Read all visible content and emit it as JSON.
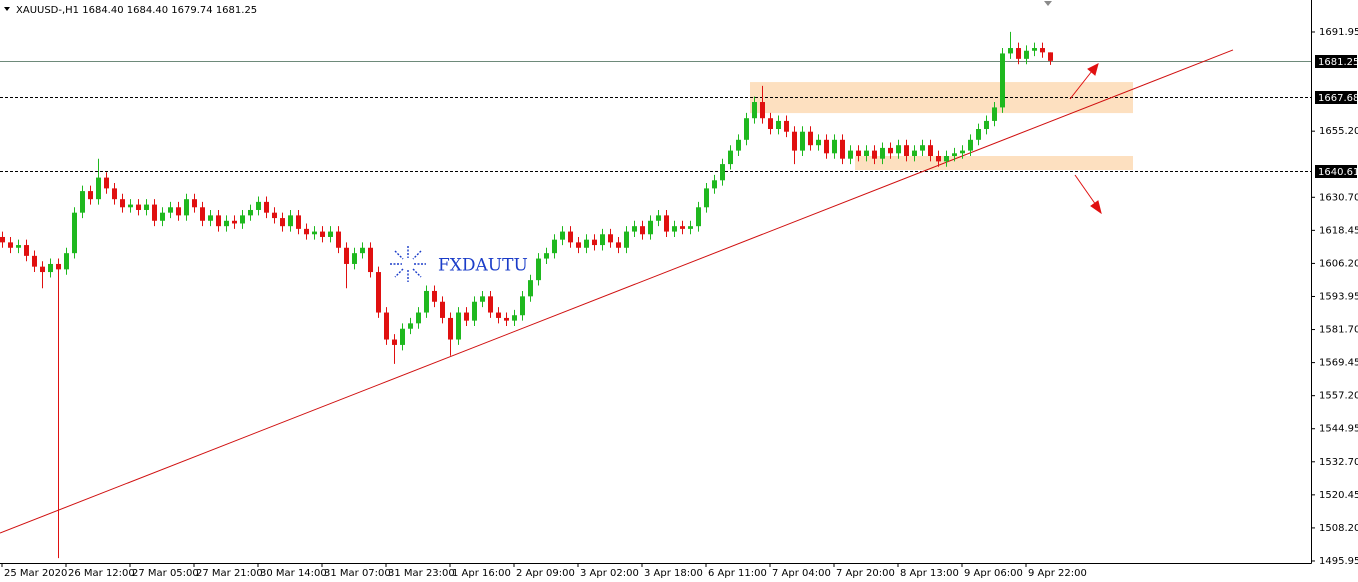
{
  "chart_data": {
    "type": "candlestick",
    "title": "XAUUSD-,H1  1684.40 1684.40 1679.74 1681.25",
    "watermark": "FXDAUTU",
    "up_color": "#1fb81f",
    "down_color": "#e01010",
    "x": [
      0,
      2,
      4,
      6,
      8,
      10,
      12,
      14,
      16,
      18,
      20,
      22,
      24,
      26,
      28,
      30,
      32,
      34,
      36,
      38,
      40,
      42,
      44,
      46,
      48,
      50,
      52,
      54,
      56,
      58,
      60,
      62,
      64,
      66,
      68,
      70,
      72,
      74,
      76,
      78,
      80,
      82,
      84,
      86,
      88,
      90,
      92,
      94,
      96,
      98,
      100,
      102,
      104,
      106,
      108,
      110,
      112,
      114,
      116,
      118,
      120,
      122,
      124,
      126,
      128,
      130,
      132,
      134,
      136,
      138,
      140,
      142,
      144,
      146,
      148,
      150,
      152,
      154,
      156,
      158,
      160,
      162,
      164,
      166,
      168,
      170,
      172,
      174,
      176,
      178,
      180,
      182,
      184,
      186,
      188,
      190,
      192,
      194,
      196,
      198,
      200,
      202,
      204,
      206,
      208,
      210,
      212,
      214,
      216,
      218,
      220,
      222,
      224,
      226,
      228,
      230,
      232,
      234,
      236,
      238,
      240,
      242,
      244,
      246,
      248,
      250,
      252,
      254,
      256,
      258,
      260,
      262
    ],
    "open": [
      1616,
      1614,
      1612,
      1613,
      1609,
      1605,
      1603,
      1606,
      1604,
      1610,
      1625,
      1633,
      1630,
      1638,
      1634,
      1630,
      1627,
      1628,
      1626,
      1628,
      1622,
      1625,
      1627,
      1624,
      1630,
      1627,
      1622,
      1624,
      1620,
      1622,
      1621,
      1624,
      1626,
      1629,
      1625,
      1623,
      1620,
      1624,
      1619,
      1617,
      1618,
      1616,
      1618,
      1612,
      1606,
      1610,
      1612,
      1603,
      1588,
      1578,
      1576,
      1582,
      1584,
      1588,
      1596,
      1592,
      1586,
      1578,
      1588,
      1585,
      1592,
      1594,
      1588,
      1586,
      1585,
      1587,
      1594,
      1600,
      1608,
      1610,
      1615,
      1618,
      1614,
      1612,
      1615,
      1613,
      1617,
      1614,
      1612,
      1618,
      1620,
      1617,
      1622,
      1624,
      1618,
      1620,
      1619,
      1620,
      1627,
      1634,
      1637,
      1643,
      1648,
      1652,
      1660,
      1666,
      1660,
      1656,
      1659,
      1655,
      1648,
      1655,
      1650,
      1652,
      1647,
      1652,
      1645,
      1648,
      1646,
      1648,
      1645,
      1649,
      1647,
      1650,
      1646,
      1648,
      1650,
      1646,
      1644,
      1646,
      1647,
      1648,
      1652,
      1656,
      1659,
      1664,
      1684,
      1686,
      1682,
      1685,
      1686,
      1684.4
    ],
    "high": [
      1618,
      1616,
      1615,
      1615,
      1611,
      1607,
      1608,
      1608,
      1612,
      1627,
      1635,
      1635,
      1645,
      1640,
      1636,
      1632,
      1630,
      1630,
      1630,
      1630,
      1627,
      1629,
      1629,
      1632,
      1632,
      1629,
      1626,
      1626,
      1624,
      1624,
      1626,
      1628,
      1631,
      1631,
      1627,
      1625,
      1626,
      1626,
      1621,
      1620,
      1620,
      1620,
      1620,
      1614,
      1612,
      1614,
      1614,
      1605,
      1590,
      1580,
      1584,
      1586,
      1590,
      1598,
      1598,
      1594,
      1588,
      1590,
      1590,
      1594,
      1596,
      1596,
      1590,
      1588,
      1589,
      1596,
      1602,
      1610,
      1612,
      1617,
      1620,
      1620,
      1616,
      1617,
      1617,
      1619,
      1619,
      1616,
      1620,
      1622,
      1622,
      1624,
      1626,
      1626,
      1622,
      1622,
      1622,
      1629,
      1636,
      1639,
      1645,
      1650,
      1654,
      1662,
      1668,
      1672,
      1662,
      1661,
      1661,
      1657,
      1657,
      1657,
      1654,
      1654,
      1654,
      1654,
      1650,
      1650,
      1650,
      1650,
      1651,
      1651,
      1652,
      1652,
      1650,
      1652,
      1652,
      1648,
      1648,
      1649,
      1650,
      1654,
      1658,
      1661,
      1666,
      1686,
      1692,
      1688,
      1687,
      1688,
      1688,
      1684.4
    ],
    "low": [
      1612,
      1610,
      1610,
      1607,
      1603,
      1597,
      1601,
      1497,
      1602,
      1608,
      1623,
      1628,
      1628,
      1632,
      1628,
      1625,
      1625,
      1624,
      1624,
      1620,
      1620,
      1623,
      1622,
      1622,
      1625,
      1620,
      1620,
      1618,
      1618,
      1619,
      1619,
      1622,
      1624,
      1623,
      1621,
      1618,
      1618,
      1617,
      1615,
      1615,
      1614,
      1614,
      1610,
      1597,
      1604,
      1608,
      1601,
      1586,
      1576,
      1569,
      1574,
      1580,
      1582,
      1586,
      1590,
      1584,
      1572,
      1576,
      1583,
      1583,
      1590,
      1586,
      1584,
      1583,
      1583,
      1585,
      1592,
      1598,
      1606,
      1608,
      1613,
      1612,
      1610,
      1610,
      1611,
      1611,
      1612,
      1610,
      1610,
      1616,
      1615,
      1615,
      1620,
      1616,
      1616,
      1617,
      1617,
      1618,
      1625,
      1632,
      1635,
      1641,
      1646,
      1650,
      1658,
      1658,
      1654,
      1654,
      1653,
      1643,
      1646,
      1648,
      1648,
      1645,
      1645,
      1643,
      1643,
      1644,
      1644,
      1643,
      1643,
      1645,
      1645,
      1644,
      1644,
      1646,
      1644,
      1642,
      1642,
      1644,
      1645,
      1646,
      1650,
      1654,
      1657,
      1662,
      1682,
      1680,
      1680,
      1683,
      1682.4,
      1679.74
    ],
    "close": [
      1614,
      1612,
      1613,
      1609,
      1605,
      1603,
      1606,
      1604,
      1610,
      1625,
      1633,
      1630,
      1638,
      1634,
      1630,
      1627,
      1628,
      1626,
      1628,
      1622,
      1625,
      1627,
      1624,
      1630,
      1627,
      1622,
      1624,
      1620,
      1622,
      1621,
      1624,
      1626,
      1629,
      1625,
      1623,
      1620,
      1624,
      1619,
      1617,
      1618,
      1616,
      1618,
      1612,
      1606,
      1610,
      1612,
      1603,
      1588,
      1578,
      1576,
      1582,
      1584,
      1588,
      1596,
      1592,
      1586,
      1578,
      1588,
      1585,
      1592,
      1594,
      1588,
      1586,
      1585,
      1587,
      1594,
      1600,
      1608,
      1610,
      1615,
      1618,
      1614,
      1612,
      1615,
      1613,
      1617,
      1614,
      1612,
      1618,
      1620,
      1617,
      1622,
      1624,
      1618,
      1620,
      1619,
      1620,
      1627,
      1634,
      1637,
      1643,
      1648,
      1652,
      1660,
      1666,
      1660,
      1656,
      1659,
      1655,
      1648,
      1655,
      1650,
      1652,
      1647,
      1652,
      1645,
      1648,
      1646,
      1648,
      1645,
      1649,
      1647,
      1650,
      1646,
      1648,
      1650,
      1646,
      1644,
      1646,
      1647,
      1648,
      1652,
      1656,
      1659,
      1664,
      1684,
      1686,
      1682,
      1685,
      1686,
      1684.4,
      1681.25
    ],
    "xlim": [
      -0.5,
      327.25
    ],
    "ylim": [
      1495.2,
      1703.8
    ],
    "yticks": [
      1691.95,
      {
        "value": 1655.2,
        "label": "1655.20"
      },
      {
        "value": 1630.7,
        "label": "1630.70"
      },
      1618.45,
      {
        "value": 1606.2,
        "label": "1606.20"
      },
      1593.95,
      {
        "value": 1581.7,
        "label": "1581.70"
      },
      1569.45,
      {
        "value": 1557.2,
        "label": "1557.20"
      },
      1544.95,
      {
        "value": 1532.7,
        "label": "1532.70"
      },
      1520.45,
      {
        "value": 1508.2,
        "label": "1508.20"
      },
      1495.95
    ],
    "xticks": [
      {
        "value": 0,
        "label": "25 Mar 2020"
      },
      {
        "value": 16,
        "label": "26 Mar 12:00"
      },
      {
        "value": 32,
        "label": "27 Mar 05:00"
      },
      {
        "value": 48,
        "label": "27 Mar 21:00"
      },
      {
        "value": 64,
        "label": "30 Mar 14:00"
      },
      {
        "value": 80,
        "label": "31 Mar 07:00"
      },
      {
        "value": 96,
        "label": "31 Mar 23:00"
      },
      {
        "value": 112,
        "label": "1 Apr 16:00"
      },
      {
        "value": 128,
        "label": "2 Apr 09:00"
      },
      {
        "value": 144,
        "label": "3 Apr 02:00"
      },
      {
        "value": 160,
        "label": "3 Apr 18:00"
      },
      {
        "value": 176,
        "label": "6 Apr 11:00"
      },
      {
        "value": 192,
        "label": "7 Apr 04:00"
      },
      {
        "value": 208,
        "label": "7 Apr 20:00"
      },
      {
        "value": 224,
        "label": "8 Apr 13:00"
      },
      {
        "value": 240,
        "label": "9 Apr 06:00"
      },
      {
        "value": 256,
        "label": "9 Apr 22:00"
      }
    ],
    "hlines": [
      {
        "value": 1681.25,
        "style": "solid",
        "color": "#6e8a7a"
      },
      {
        "value": 1667.68,
        "style": "dashed",
        "color": "#000000"
      },
      {
        "value": 1640.61,
        "style": "dashed",
        "color": "#000000"
      }
    ],
    "zones": [
      {
        "x": [
          187,
          282.75
        ],
        "y": [
          1661.9,
          1673.4
        ],
        "color": "#fde0c0"
      },
      {
        "x": [
          213.25,
          282.75
        ],
        "y": [
          1640.8,
          1646.0
        ],
        "color": "#fde0c0"
      }
    ],
    "trendline": {
      "x": [
        -0.5,
        307.75
      ],
      "y": [
        1506.3,
        1685.3
      ],
      "color": "#d01010"
    }
  }
}
